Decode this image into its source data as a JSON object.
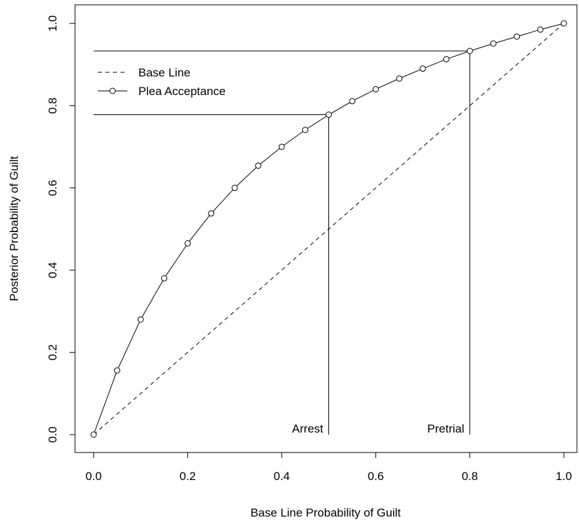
{
  "chart_data": {
    "type": "line",
    "title": "",
    "xlabel": "Base Line Probability of Guilt",
    "ylabel": "Posterior Probability of Guilt",
    "xlim": [
      0,
      1
    ],
    "ylim": [
      0,
      1
    ],
    "x_ticks": [
      "0.0",
      "0.2",
      "0.4",
      "0.6",
      "0.8",
      "1.0"
    ],
    "y_ticks": [
      "0.0",
      "0.2",
      "0.4",
      "0.6",
      "0.8",
      "1.0"
    ],
    "grid": false,
    "legend_position": "top-left",
    "series": [
      {
        "name": "Base Line",
        "style": "dashed",
        "markers": false,
        "x": [
          0,
          1
        ],
        "y": [
          0,
          1
        ]
      },
      {
        "name": "Plea Acceptance",
        "style": "solid",
        "markers": true,
        "marker_shape": "open-circle",
        "x": [
          0,
          0.05,
          0.1,
          0.15,
          0.2,
          0.25,
          0.3,
          0.35,
          0.4,
          0.45,
          0.5,
          0.55,
          0.6,
          0.65,
          0.7,
          0.75,
          0.8,
          0.85,
          0.9,
          0.95,
          1.0
        ],
        "y": [
          0,
          0.156,
          0.28,
          0.38,
          0.465,
          0.538,
          0.6,
          0.654,
          0.7,
          0.741,
          0.778,
          0.811,
          0.84,
          0.866,
          0.89,
          0.913,
          0.933,
          0.951,
          0.968,
          0.985,
          1.0
        ]
      }
    ],
    "annotations": [
      {
        "label": "Arrest",
        "x": 0.5,
        "y": 0.778
      },
      {
        "label": "Pretrial",
        "x": 0.8,
        "y": 0.933
      }
    ],
    "colors": {
      "line": "#000000",
      "background": "#ffffff"
    }
  }
}
